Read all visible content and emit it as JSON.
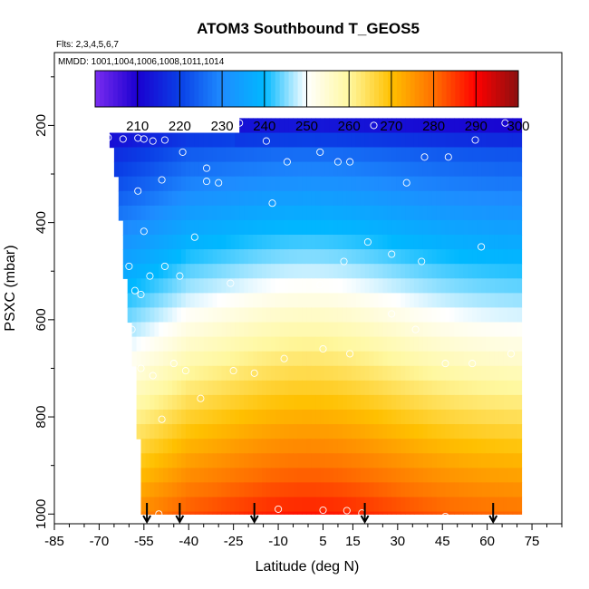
{
  "chart_data": {
    "type": "heatmap",
    "title": "ATOM3 Southbound T_GEOS5",
    "flights_note": "Flts: 2,3,4,5,6,7",
    "dates_note": "MMDD: 1001,1004,1006,1008,1011,1014",
    "xlabel": "Latitude (deg N)",
    "ylabel": "PSXC (mbar)",
    "xlim": [
      -85,
      85
    ],
    "ylim": [
      1020,
      50
    ],
    "y_reversed": true,
    "x_ticks": [
      -85,
      -70,
      -55,
      -40,
      -25,
      -10,
      5,
      15,
      30,
      45,
      60,
      75
    ],
    "y_ticks": [
      200,
      400,
      600,
      800,
      1000
    ],
    "colorbar": {
      "range": [
        200,
        300
      ],
      "ticks": [
        210,
        220,
        230,
        240,
        250,
        260,
        270,
        280,
        290,
        300
      ],
      "stops": [
        {
          "value": 200,
          "color": "#7a2cf0"
        },
        {
          "value": 210,
          "color": "#1a00d0"
        },
        {
          "value": 220,
          "color": "#0a3fe6"
        },
        {
          "value": 230,
          "color": "#1e8cff"
        },
        {
          "value": 240,
          "color": "#00b8ff"
        },
        {
          "value": 250,
          "color": "#ffffff"
        },
        {
          "value": 260,
          "color": "#fff8a0"
        },
        {
          "value": 270,
          "color": "#ffc000"
        },
        {
          "value": 280,
          "color": "#ff7000"
        },
        {
          "value": 290,
          "color": "#ff0000"
        },
        {
          "value": 300,
          "color": "#8a1010"
        }
      ]
    },
    "profile_latitudes": [
      -54,
      -43,
      -18,
      19,
      62
    ],
    "surface_lower_boundary": [
      {
        "lat": -67,
        "p": 230
      },
      {
        "lat": -66,
        "p": 260
      },
      {
        "lat": -65,
        "p": 300
      },
      {
        "lat": -64,
        "p": 360
      },
      {
        "lat": -63,
        "p": 430
      },
      {
        "lat": -62,
        "p": 500
      },
      {
        "lat": -61,
        "p": 560
      },
      {
        "lat": -60,
        "p": 620
      },
      {
        "lat": -59,
        "p": 700
      },
      {
        "lat": -58,
        "p": 800
      },
      {
        "lat": -57,
        "p": 900
      },
      {
        "lat": -56,
        "p": 1000
      }
    ],
    "observations": [
      {
        "lat": -67,
        "p": 225
      },
      {
        "lat": -62,
        "p": 228
      },
      {
        "lat": -57,
        "p": 226
      },
      {
        "lat": -55,
        "p": 228
      },
      {
        "lat": -52,
        "p": 232
      },
      {
        "lat": -48,
        "p": 230
      },
      {
        "lat": -42,
        "p": 255
      },
      {
        "lat": -34,
        "p": 288
      },
      {
        "lat": -30,
        "p": 318
      },
      {
        "lat": -23,
        "p": 195
      },
      {
        "lat": -14,
        "p": 232
      },
      {
        "lat": -7,
        "p": 275
      },
      {
        "lat": -12,
        "p": 360
      },
      {
        "lat": 4,
        "p": 255
      },
      {
        "lat": 10,
        "p": 275
      },
      {
        "lat": 14,
        "p": 275
      },
      {
        "lat": 22,
        "p": 200
      },
      {
        "lat": 33,
        "p": 318
      },
      {
        "lat": 39,
        "p": 265
      },
      {
        "lat": 47,
        "p": 265
      },
      {
        "lat": 56,
        "p": 230
      },
      {
        "lat": 66,
        "p": 195
      },
      {
        "lat": -57,
        "p": 335
      },
      {
        "lat": -49,
        "p": 312
      },
      {
        "lat": -34,
        "p": 315
      },
      {
        "lat": -55,
        "p": 418
      },
      {
        "lat": -38,
        "p": 430
      },
      {
        "lat": -60,
        "p": 490
      },
      {
        "lat": -48,
        "p": 490
      },
      {
        "lat": -53,
        "p": 510
      },
      {
        "lat": -43,
        "p": 510
      },
      {
        "lat": 12,
        "p": 480
      },
      {
        "lat": 20,
        "p": 440
      },
      {
        "lat": 28,
        "p": 465
      },
      {
        "lat": 38,
        "p": 480
      },
      {
        "lat": 58,
        "p": 450
      },
      {
        "lat": -26,
        "p": 525
      },
      {
        "lat": 4,
        "p": 528
      },
      {
        "lat": -58,
        "p": 540
      },
      {
        "lat": -56,
        "p": 548
      },
      {
        "lat": -59,
        "p": 620
      },
      {
        "lat": -56,
        "p": 700
      },
      {
        "lat": -52,
        "p": 715
      },
      {
        "lat": -45,
        "p": 690
      },
      {
        "lat": -41,
        "p": 705
      },
      {
        "lat": -36,
        "p": 762
      },
      {
        "lat": -25,
        "p": 705
      },
      {
        "lat": -18,
        "p": 710
      },
      {
        "lat": -8,
        "p": 680
      },
      {
        "lat": 5,
        "p": 660
      },
      {
        "lat": 14,
        "p": 670
      },
      {
        "lat": 28,
        "p": 588
      },
      {
        "lat": 36,
        "p": 620
      },
      {
        "lat": 46,
        "p": 690
      },
      {
        "lat": 55,
        "p": 690
      },
      {
        "lat": 68,
        "p": 670
      },
      {
        "lat": -49,
        "p": 805
      },
      {
        "lat": -10,
        "p": 990
      },
      {
        "lat": 5,
        "p": 992
      },
      {
        "lat": 13,
        "p": 993
      },
      {
        "lat": 18,
        "p": 998
      },
      {
        "lat": 34,
        "p": 1010
      },
      {
        "lat": 46,
        "p": 1005
      },
      {
        "lat": -50,
        "p": 1000
      }
    ]
  }
}
